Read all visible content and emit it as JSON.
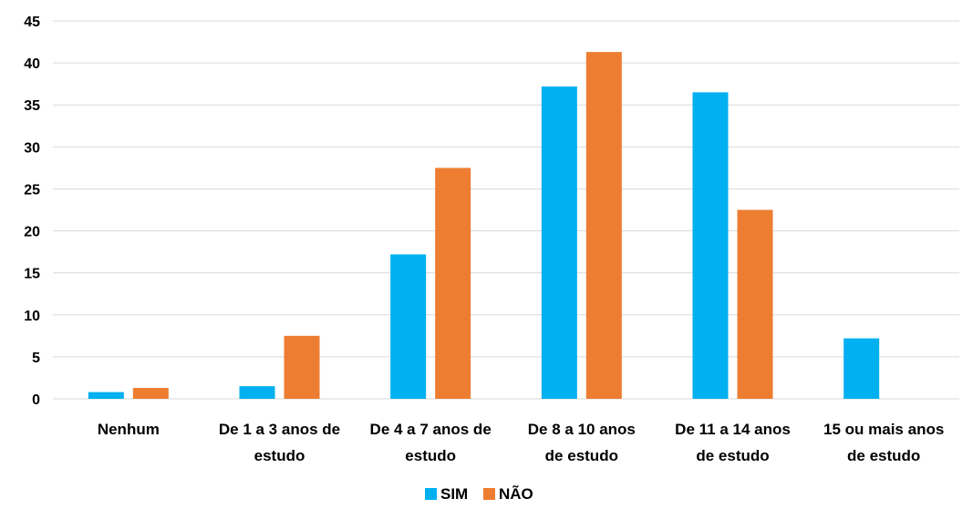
{
  "chart_data": {
    "type": "bar",
    "categories": [
      [
        "Nenhum"
      ],
      [
        "De 1 a 3 anos de",
        "estudo"
      ],
      [
        "De 4 a 7 anos de",
        "estudo"
      ],
      [
        "De 8 a 10 anos",
        "de estudo"
      ],
      [
        "De 11 a 14 anos",
        "de estudo"
      ],
      [
        "15 ou mais anos",
        "de estudo"
      ]
    ],
    "series": [
      {
        "name": "SIM",
        "color": "#00B0F0",
        "values": [
          0.8,
          1.5,
          17.2,
          37.2,
          36.5,
          7.2
        ]
      },
      {
        "name": "NÃO",
        "color": "#ED7D31",
        "values": [
          1.3,
          7.5,
          27.5,
          41.3,
          22.5,
          0
        ]
      }
    ],
    "ylim": [
      0,
      45
    ],
    "yticks": [
      0,
      5,
      10,
      15,
      20,
      25,
      30,
      35,
      40,
      45
    ],
    "grid": true,
    "legend_position": "bottom-center"
  }
}
